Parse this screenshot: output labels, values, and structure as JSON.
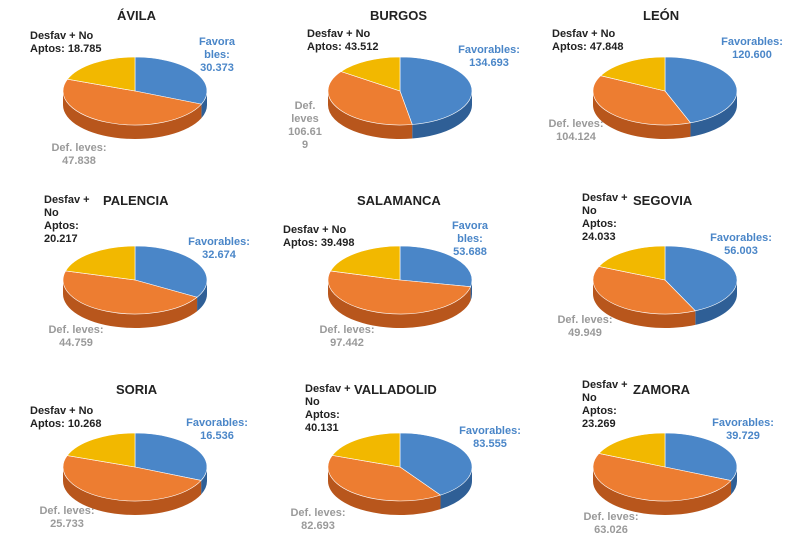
{
  "colors": {
    "favorables": "#4a86c8",
    "def_leves": "#ed7d31",
    "desfav": "#f2b800"
  },
  "chart_data": [
    {
      "type": "pie",
      "title": "ÁVILA",
      "labels": {
        "desfav": "Desfav + No Aptos: 18.785",
        "favorables": "Favora bles: 30.373",
        "def": "Def. leves: 47.838"
      },
      "slices": [
        {
          "name": "Favorables",
          "value": 30373
        },
        {
          "name": "Def. leves",
          "value": 47838
        },
        {
          "name": "Desfav + No Aptos",
          "value": 18785
        }
      ]
    },
    {
      "type": "pie",
      "title": "BURGOS",
      "labels": {
        "desfav": "Desfav + No Aptos: 43.512",
        "favorables": "Favorables: 134.693",
        "def": "Def. leves 106.61 9"
      },
      "slices": [
        {
          "name": "Favorables",
          "value": 134693
        },
        {
          "name": "Def. leves",
          "value": 106619
        },
        {
          "name": "Desfav + No Aptos",
          "value": 43512
        }
      ]
    },
    {
      "type": "pie",
      "title": "LEÓN",
      "labels": {
        "desfav": "Desfav + No Aptos: 47.848",
        "favorables": "Favorables: 120.600",
        "def": "Def. leves: 104.124"
      },
      "slices": [
        {
          "name": "Favorables",
          "value": 120600
        },
        {
          "name": "Def. leves",
          "value": 104124
        },
        {
          "name": "Desfav + No Aptos",
          "value": 47848
        }
      ]
    },
    {
      "type": "pie",
      "title": "PALENCIA",
      "labels": {
        "desfav": "Desfav + No Aptos: 20.217",
        "favorables": "Favorables: 32.674",
        "def": "Def. leves: 44.759"
      },
      "slices": [
        {
          "name": "Favorables",
          "value": 32674
        },
        {
          "name": "Def. leves",
          "value": 44759
        },
        {
          "name": "Desfav + No Aptos",
          "value": 20217
        }
      ]
    },
    {
      "type": "pie",
      "title": "SALAMANCA",
      "labels": {
        "desfav": "Desfav + No Aptos: 39.498",
        "favorables": "Favora bles: 53.688",
        "def": "Def. leves: 97.442"
      },
      "slices": [
        {
          "name": "Favorables",
          "value": 53688
        },
        {
          "name": "Def. leves",
          "value": 97442
        },
        {
          "name": "Desfav + No Aptos",
          "value": 39498
        }
      ]
    },
    {
      "type": "pie",
      "title": "SEGOVIA",
      "labels": {
        "desfav": "Desfav + No Aptos: 24.033",
        "favorables": "Favorables: 56.003",
        "def": "Def. leves: 49.949"
      },
      "slices": [
        {
          "name": "Favorables",
          "value": 56003
        },
        {
          "name": "Def. leves",
          "value": 49949
        },
        {
          "name": "Desfav + No Aptos",
          "value": 24033
        }
      ]
    },
    {
      "type": "pie",
      "title": "SORIA",
      "labels": {
        "desfav": "Desfav + No Aptos: 10.268",
        "favorables": "Favorables: 16.536",
        "def": "Def. leves: 25.733"
      },
      "slices": [
        {
          "name": "Favorables",
          "value": 16536
        },
        {
          "name": "Def. leves",
          "value": 25733
        },
        {
          "name": "Desfav + No Aptos",
          "value": 10268
        }
      ]
    },
    {
      "type": "pie",
      "title": "VALLADOLID",
      "labels": {
        "desfav": "Desfav + No Aptos: 40.131",
        "favorables": "Favorables: 83.555",
        "def": "Def. leves: 82.693"
      },
      "slices": [
        {
          "name": "Favorables",
          "value": 83555
        },
        {
          "name": "Def. leves",
          "value": 82693
        },
        {
          "name": "Desfav + No Aptos",
          "value": 40131
        }
      ]
    },
    {
      "type": "pie",
      "title": "ZAMORA",
      "labels": {
        "desfav": "Desfav + No Aptos: 23.269",
        "favorables": "Favorables: 39.729",
        "def": "Def. leves: 63.026"
      },
      "slices": [
        {
          "name": "Favorables",
          "value": 39729
        },
        {
          "name": "Def. leves",
          "value": 63026
        },
        {
          "name": "Desfav + No Aptos",
          "value": 23269
        }
      ]
    }
  ]
}
